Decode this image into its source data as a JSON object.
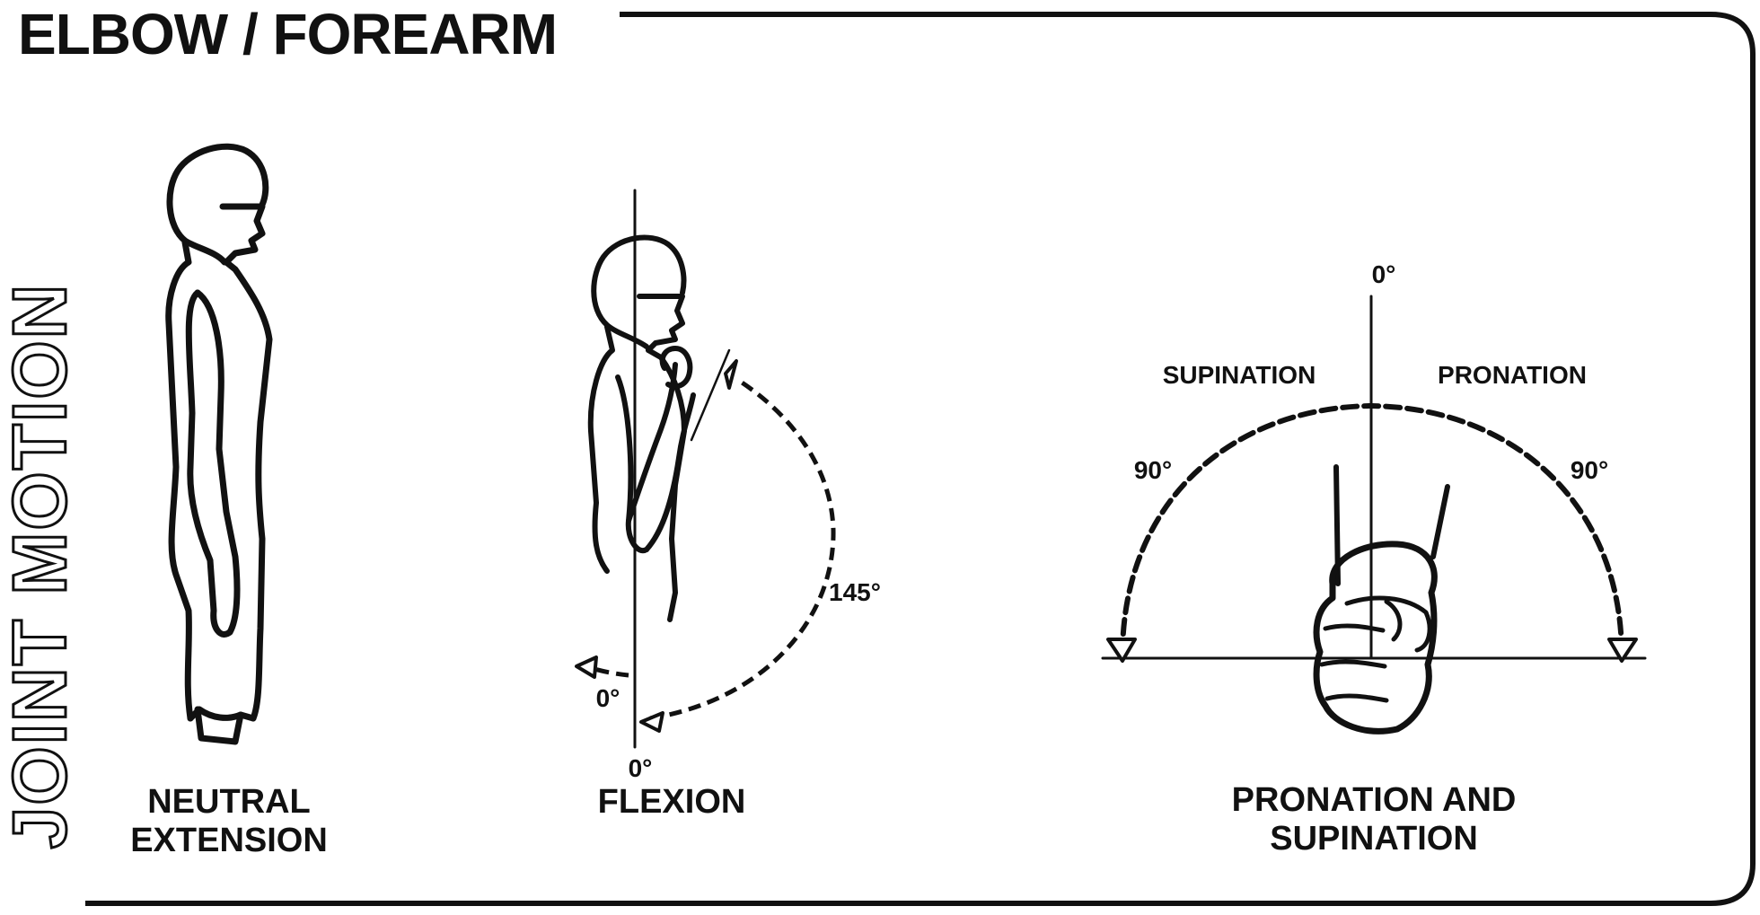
{
  "title": "ELBOW / FOREARM",
  "side_title": "JOINT MOTION",
  "figures": {
    "neutral": {
      "caption_line1": "NEUTRAL",
      "caption_line2": "EXTENSION"
    },
    "flexion": {
      "caption": "FLEXION",
      "label_145": "145°",
      "label_0_upper": "0°",
      "label_0_lower": "0°",
      "max_degrees": 145
    },
    "pronation": {
      "caption_line1": "PRONATION AND",
      "caption_line2": "SUPINATION",
      "label_top": "0°",
      "label_supination": "SUPINATION",
      "label_pronation": "PRONATION",
      "label_left": "90°",
      "label_right": "90°",
      "supination_degrees": 90,
      "pronation_degrees": 90
    }
  },
  "colors": {
    "ink": "#111111",
    "paper": "#ffffff"
  }
}
